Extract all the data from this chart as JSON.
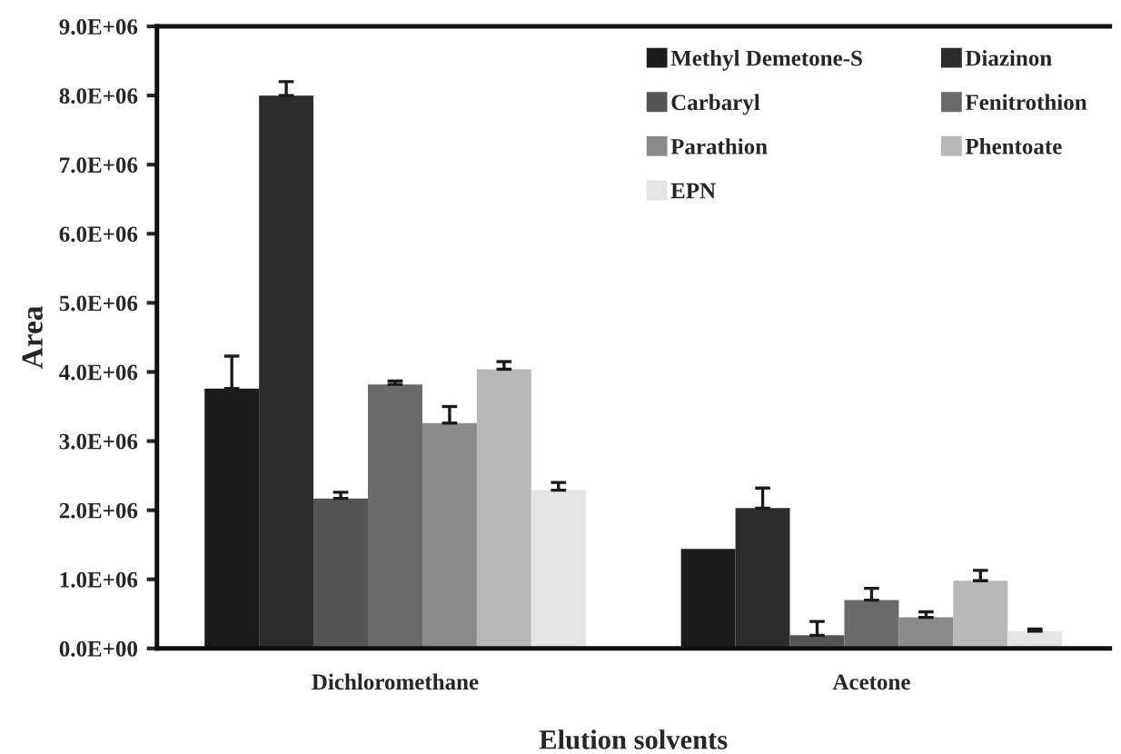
{
  "chart_data": {
    "type": "bar",
    "xlabel": "Elution solvents",
    "ylabel": "Area",
    "categories": [
      "Dichloromethane",
      "Acetone"
    ],
    "series": [
      {
        "name": "Methyl Demetone-S",
        "color": "#1c1c1c",
        "values": [
          3760000,
          1440000
        ],
        "errors": [
          [
            3760000,
            4230000
          ],
          null
        ]
      },
      {
        "name": "Diazinon",
        "color": "#2c2c2c",
        "values": [
          8000000,
          2030000
        ],
        "errors": [
          [
            8000000,
            8200000
          ],
          [
            2030000,
            2320000
          ]
        ]
      },
      {
        "name": "Carbaryl",
        "color": "#555555",
        "values": [
          2170000,
          190000
        ],
        "errors": [
          [
            2170000,
            2260000
          ],
          [
            190000,
            390000
          ]
        ]
      },
      {
        "name": "Fenitrothion",
        "color": "#6a6a6a",
        "values": [
          3820000,
          700000
        ],
        "errors": [
          [
            3820000,
            3870000
          ],
          [
            700000,
            870000
          ]
        ]
      },
      {
        "name": "Parathion",
        "color": "#8a8a8a",
        "values": [
          3260000,
          450000
        ],
        "errors": [
          [
            3260000,
            3500000
          ],
          [
            450000,
            530000
          ]
        ]
      },
      {
        "name": "Phentoate",
        "color": "#b8b8b8",
        "values": [
          4040000,
          980000
        ],
        "errors": [
          [
            4040000,
            4150000
          ],
          [
            980000,
            1130000
          ]
        ]
      },
      {
        "name": "EPN",
        "color": "#e4e4e4",
        "values": [
          2290000,
          250000
        ],
        "errors": [
          [
            2290000,
            2400000
          ],
          [
            250000,
            280000
          ]
        ]
      }
    ],
    "ylim": [
      0,
      9000000
    ],
    "yticks": [
      {
        "value": 0,
        "label": "0.0E+00"
      },
      {
        "value": 1000000,
        "label": "1.0E+06"
      },
      {
        "value": 2000000,
        "label": "2.0E+06"
      },
      {
        "value": 3000000,
        "label": "3.0E+06"
      },
      {
        "value": 4000000,
        "label": "4.0E+06"
      },
      {
        "value": 5000000,
        "label": "5.0E+06"
      },
      {
        "value": 6000000,
        "label": "6.0E+06"
      },
      {
        "value": 7000000,
        "label": "7.0E+06"
      },
      {
        "value": 8000000,
        "label": "8.0E+06"
      },
      {
        "value": 9000000,
        "label": "9.0E+06"
      }
    ],
    "grid": false,
    "legend": "top right"
  }
}
